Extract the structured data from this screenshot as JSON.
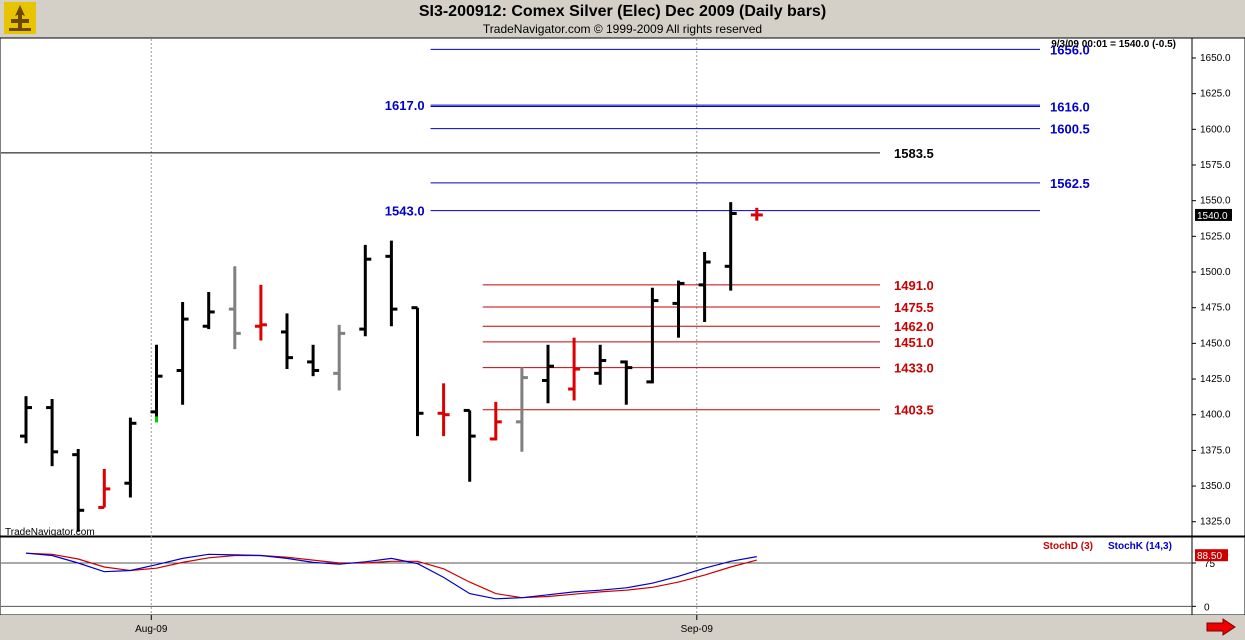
{
  "header": {
    "title": "SI3-200912:  Comex Silver (Elec) Dec 2009  (Daily bars)",
    "subtitle": "TradeNavigator.com © 1999-2009 All rights reserved"
  },
  "info_readout": "9/3/09 00:01 = 1540.0 (-0.5)",
  "watermark": "TradeNavigator.com",
  "colors": {
    "blue_level": "#0000cc",
    "red_level": "#cc0000",
    "black_level": "#000000",
    "up_bar": "#000000",
    "red_bar": "#dd0000",
    "gray_bar": "#808080",
    "green_tick": "#00cc00",
    "stoch_d": "#cc0000",
    "stoch_k": "#0000cc"
  },
  "chart_data": {
    "type": "bar",
    "subtype": "ohlc",
    "price_axis": {
      "ticks": [
        "1650.0",
        "1625.0",
        "1600.0",
        "1575.0",
        "1550.0",
        "1525.0",
        "1500.0",
        "1475.0",
        "1450.0",
        "1425.0",
        "1400.0",
        "1375.0",
        "1350.0",
        "1325.0"
      ],
      "range": [
        1315,
        1664
      ],
      "current_label": "1540.0"
    },
    "date_axis": {
      "labels": [
        "Aug-09",
        "Sep-09"
      ],
      "label_bar_index": [
        4.8,
        25.7
      ]
    },
    "bars": [
      {
        "o": 1385,
        "h": 1413,
        "l": 1380,
        "c": 1405,
        "color": "black"
      },
      {
        "o": 1405,
        "h": 1411,
        "l": 1364,
        "c": 1374,
        "color": "black"
      },
      {
        "o": 1372,
        "h": 1376,
        "l": 1318,
        "c": 1333,
        "color": "black"
      },
      {
        "o": 1335,
        "h": 1362,
        "l": 1335,
        "c": 1348,
        "color": "red"
      },
      {
        "o": 1352,
        "h": 1398,
        "l": 1342,
        "c": 1394,
        "color": "black"
      },
      {
        "o": 1402,
        "h": 1449,
        "l": 1396,
        "c": 1427,
        "color": "black",
        "low_tick": "green"
      },
      {
        "o": 1431,
        "h": 1479,
        "l": 1407,
        "c": 1467,
        "color": "black"
      },
      {
        "o": 1462,
        "h": 1486,
        "l": 1460,
        "c": 1472,
        "color": "black"
      },
      {
        "o": 1474,
        "h": 1504,
        "l": 1446,
        "c": 1457,
        "color": "gray"
      },
      {
        "o": 1462,
        "h": 1491,
        "l": 1452,
        "c": 1463,
        "color": "red"
      },
      {
        "o": 1458,
        "h": 1471,
        "l": 1432,
        "c": 1440,
        "color": "black"
      },
      {
        "o": 1437,
        "h": 1449,
        "l": 1427,
        "c": 1431,
        "color": "black"
      },
      {
        "o": 1429,
        "h": 1463,
        "l": 1417,
        "c": 1457,
        "color": "gray"
      },
      {
        "o": 1460,
        "h": 1519,
        "l": 1455,
        "c": 1509,
        "color": "black"
      },
      {
        "o": 1511,
        "h": 1522,
        "l": 1462,
        "c": 1474,
        "color": "black"
      },
      {
        "o": 1475,
        "h": 1475,
        "l": 1385,
        "c": 1401,
        "color": "black"
      },
      {
        "o": 1401,
        "h": 1422,
        "l": 1385,
        "c": 1400,
        "color": "red"
      },
      {
        "o": 1403,
        "h": 1403,
        "l": 1353,
        "c": 1385,
        "color": "black"
      },
      {
        "o": 1383,
        "h": 1409,
        "l": 1382,
        "c": 1395,
        "color": "red"
      },
      {
        "o": 1395,
        "h": 1433,
        "l": 1374,
        "c": 1426,
        "color": "gray"
      },
      {
        "o": 1424,
        "h": 1449,
        "l": 1408,
        "c": 1434,
        "color": "black"
      },
      {
        "o": 1418,
        "h": 1454,
        "l": 1410,
        "c": 1432,
        "color": "red"
      },
      {
        "o": 1429,
        "h": 1449,
        "l": 1421,
        "c": 1438,
        "color": "black"
      },
      {
        "o": 1437,
        "h": 1438,
        "l": 1407,
        "c": 1433,
        "color": "black"
      },
      {
        "o": 1423,
        "h": 1489,
        "l": 1422,
        "c": 1480,
        "color": "black"
      },
      {
        "o": 1478,
        "h": 1494,
        "l": 1454,
        "c": 1492,
        "color": "black"
      },
      {
        "o": 1491,
        "h": 1514,
        "l": 1465,
        "c": 1507,
        "color": "black"
      },
      {
        "o": 1504,
        "h": 1549,
        "l": 1487,
        "c": 1541,
        "color": "black"
      },
      {
        "o": 1540,
        "h": 1545,
        "l": 1536,
        "c": 1540,
        "color": "red"
      }
    ],
    "levels": [
      {
        "value": 1656.0,
        "label": "1656.0",
        "color": "blue",
        "start_bar": 15.5
      },
      {
        "value": 1616.0,
        "label": "1616.0",
        "color": "blue",
        "start_bar": 15.5
      },
      {
        "value": 1617.0,
        "label": "1617.0",
        "color": "blue",
        "start_bar": 15.5,
        "left_label": true
      },
      {
        "value": 1600.5,
        "label": "1600.5",
        "color": "blue",
        "start_bar": 15.5
      },
      {
        "value": 1583.5,
        "label": "1583.5",
        "color": "black",
        "start_bar": -1
      },
      {
        "value": 1562.5,
        "label": "1562.5",
        "color": "blue",
        "start_bar": 15.5
      },
      {
        "value": 1543.0,
        "label": "1543.0",
        "color": "blue",
        "start_bar": 15.5,
        "left_label": true
      },
      {
        "value": 1491.0,
        "label": "1491.0",
        "color": "red",
        "start_bar": 17.5
      },
      {
        "value": 1475.5,
        "label": "1475.5",
        "color": "red",
        "start_bar": 17.5
      },
      {
        "value": 1462.0,
        "label": "1462.0",
        "color": "red",
        "start_bar": 17.5
      },
      {
        "value": 1451.0,
        "label": "1451.0",
        "color": "red",
        "start_bar": 17.5
      },
      {
        "value": 1433.0,
        "label": "1433.0",
        "color": "red",
        "start_bar": 17.5
      },
      {
        "value": 1403.5,
        "label": "1403.5",
        "color": "red",
        "start_bar": 17.5
      }
    ],
    "stochastic": {
      "legend_d": "StochD (3)",
      "legend_k": "StochK (14,3)",
      "axis_ticks": [
        "75",
        "0"
      ],
      "current_label": "88.50",
      "range": [
        -15,
        120
      ],
      "k": [
        92,
        88,
        75,
        60,
        62,
        72,
        83,
        90,
        89,
        88,
        83,
        76,
        73,
        77,
        83,
        74,
        50,
        22,
        13,
        15,
        20,
        25,
        28,
        32,
        40,
        52,
        66,
        78,
        86
      ],
      "d": [
        92,
        90,
        82,
        68,
        62,
        66,
        76,
        84,
        88,
        88,
        85,
        80,
        75,
        75,
        78,
        78,
        65,
        42,
        22,
        15,
        17,
        21,
        25,
        28,
        33,
        42,
        54,
        68,
        80
      ]
    }
  }
}
